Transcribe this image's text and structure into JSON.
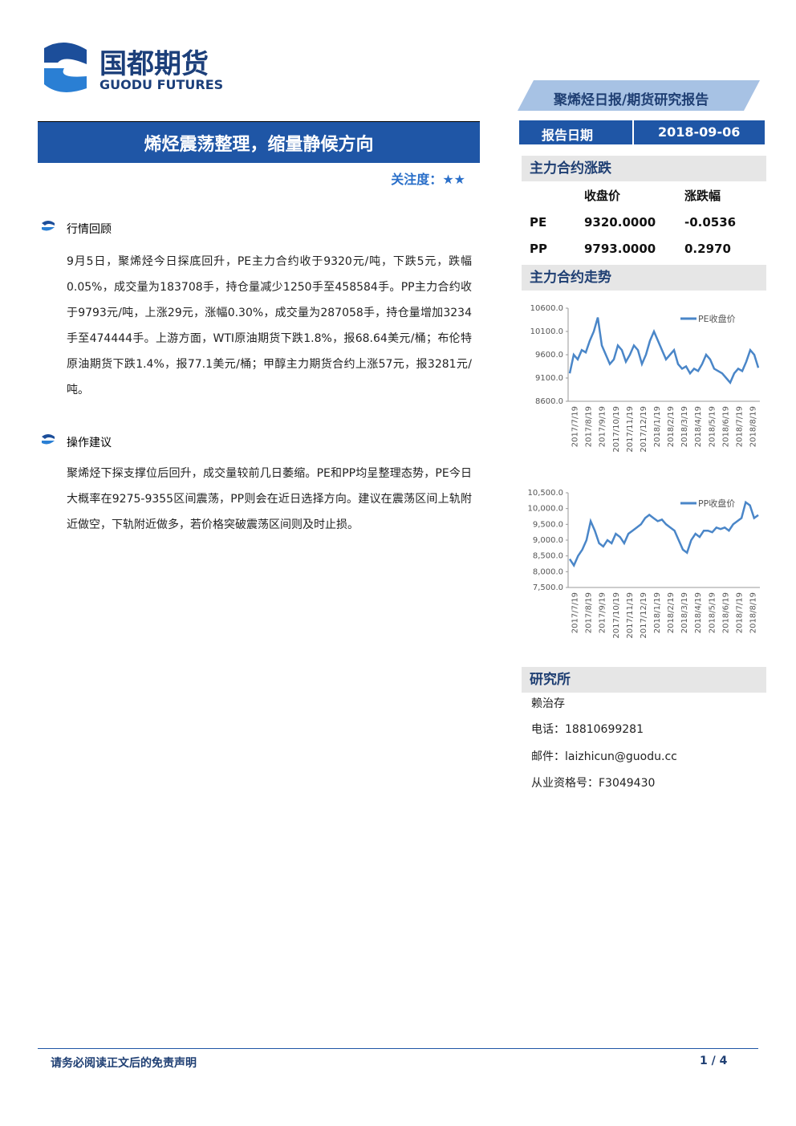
{
  "header": {
    "logo_cn": "国都期货",
    "logo_en": "GUODU FUTURES",
    "report_type": "聚烯烃日报/期货研究报告",
    "date_label": "报告日期",
    "date": "2018-09-06"
  },
  "title": "烯烃震荡整理，缩量静候方向",
  "attention": {
    "label": "关注度：",
    "stars": "★★"
  },
  "sections": [
    {
      "heading": "行情回顾",
      "text": "9月5日，聚烯烃今日探底回升，PE主力合约收于9320元/吨，下跌5元，跌幅0.05%，成交量为183708手，持仓量减少1250手至458584手。PP主力合约收于9793元/吨，上涨29元，涨幅0.30%，成交量为287058手，持仓量增加3234手至474444手。上游方面，WTI原油期货下跌1.8%，报68.64美元/桶；布伦特原油期货下跌1.4%，报77.1美元/桶；甲醇主力期货合约上涨57元，报3281元/吨。"
    },
    {
      "heading": "操作建议",
      "text": "聚烯烃下探支撑位后回升，成交量较前几日萎缩。PE和PP均呈整理态势，PE今日大概率在9275-9355区间震荡，PP则会在近日选择方向。建议在震荡区间上轨附近做空，下轨附近做多，若价格突破震荡区间则及时止损。"
    }
  ],
  "table": {
    "heading": "主力合约涨跌",
    "columns": [
      "收盘价",
      "涨跌幅"
    ],
    "rows": [
      [
        "PE",
        "9320.0000",
        "-0.0536"
      ],
      [
        "PP",
        "9793.0000",
        "0.2970"
      ]
    ]
  },
  "trend_heading": "主力合约走势",
  "charts": [
    {
      "type": "line",
      "ylim": [
        8600,
        10600
      ],
      "yticks": [
        {
          "value": 8600,
          "label": "8600.0"
        },
        {
          "value": 9100,
          "label": "9100.0"
        },
        {
          "value": 9600,
          "label": "9600.0"
        },
        {
          "value": 10100,
          "label": "10100.0"
        },
        {
          "value": 10600,
          "label": "10600.0"
        }
      ],
      "xlabels": [
        "2017/7/19",
        "2017/8/19",
        "2017/9/19",
        "2017/10/19",
        "2017/11/19",
        "2017/12/19",
        "2018/1/19",
        "2018/2/19",
        "2018/3/19",
        "2018/4/19",
        "2018/5/19",
        "2018/6/19",
        "2018/7/19",
        "2018/8/19"
      ],
      "series": [
        {
          "name": "PE收盘价",
          "color": "#4a86c8",
          "values": [
            9200,
            9600,
            9500,
            9700,
            9650,
            9900,
            10100,
            10400,
            9800,
            9600,
            9400,
            9500,
            9800,
            9700,
            9450,
            9600,
            9800,
            9700,
            9400,
            9600,
            9900,
            10100,
            9900,
            9700,
            9500,
            9600,
            9700,
            9400,
            9300,
            9350,
            9200,
            9300,
            9250,
            9400,
            9600,
            9500,
            9300,
            9250,
            9200,
            9100,
            9000,
            9200,
            9300,
            9250,
            9450,
            9700,
            9600,
            9320
          ]
        }
      ]
    },
    {
      "type": "line",
      "ylim": [
        7500,
        10500
      ],
      "yticks": [
        {
          "value": 7500,
          "label": "7,500.0"
        },
        {
          "value": 8000,
          "label": "8,000.0"
        },
        {
          "value": 8500,
          "label": "8,500.0"
        },
        {
          "value": 9000,
          "label": "9,000.0"
        },
        {
          "value": 9500,
          "label": "9,500.0"
        },
        {
          "value": 10000,
          "label": "10,000.0"
        },
        {
          "value": 10500,
          "label": "10,500.0"
        }
      ],
      "xlabels": [
        "2017/7/19",
        "2017/8/19",
        "2017/9/19",
        "2017/10/19",
        "2017/11/19",
        "2017/12/19",
        "2018/1/19",
        "2018/2/19",
        "2018/3/19",
        "2018/4/19",
        "2018/5/19",
        "2018/6/19",
        "2018/7/19",
        "2018/8/19"
      ],
      "series": [
        {
          "name": "PP收盘价",
          "color": "#4a86c8",
          "values": [
            8400,
            8200,
            8500,
            8700,
            9000,
            9600,
            9300,
            8900,
            8800,
            9000,
            8900,
            9200,
            9100,
            8900,
            9200,
            9300,
            9400,
            9500,
            9700,
            9800,
            9700,
            9600,
            9650,
            9500,
            9400,
            9300,
            9000,
            8700,
            8600,
            9000,
            9200,
            9100,
            9300,
            9300,
            9250,
            9400,
            9350,
            9400,
            9300,
            9500,
            9600,
            9700,
            10200,
            10100,
            9700,
            9793
          ]
        }
      ]
    }
  ],
  "institute": {
    "heading": "研究所",
    "name": "赖治存",
    "phone": "电话：18810699281",
    "email": "邮件：laizhicun@guodu.cc",
    "license": "从业资格号：F3049430"
  },
  "footer": {
    "disclaimer": "请务必阅读正文后的免责声明",
    "page": "1 / 4"
  }
}
